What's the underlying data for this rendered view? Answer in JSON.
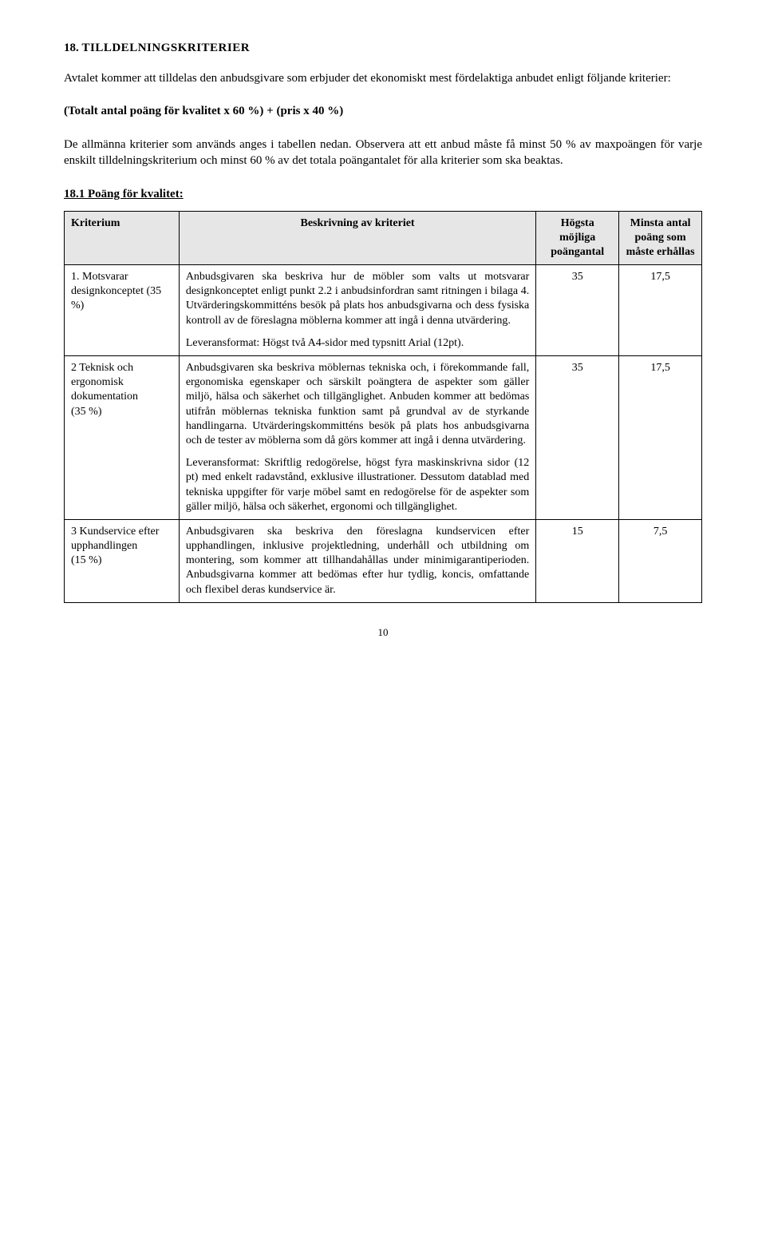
{
  "heading_prefix": "18. ",
  "heading_text": "TILLDELNINGSKRITERIER",
  "intro_para": "Avtalet kommer att tilldelas den anbudsgivare som erbjuder det ekonomiskt mest fördelaktiga anbudet enligt följande kriterier:",
  "formula": "(Totalt antal poäng för kvalitet x 60 %) + (pris x 40 %)",
  "general_para": "De allmänna kriterier som används anges i tabellen nedan. Observera att ett anbud måste få minst 50 % av maxpoängen för varje enskilt tilldelningskriterium och minst 60 % av det totala poängantalet för alla kriterier som ska beaktas.",
  "subheading": "18.1 Poäng för kvalitet:",
  "table": {
    "headers": {
      "criterion": "Kriterium",
      "description": "Beskrivning av kriteriet",
      "max_points": "Högsta möjliga poängantal",
      "min_points": "Minsta antal poäng som måste erhållas"
    },
    "rows": [
      {
        "criterion": "1. Motsvarar designkonceptet (35 %)",
        "desc_p1": "Anbudsgivaren ska beskriva hur de möbler som valts ut motsvarar designkonceptet enligt punkt 2.2 i anbudsinfordran samt ritningen i bilaga 4. Utvärderingskommitténs besök på plats hos anbudsgivarna och dess fysiska kontroll av de föreslagna möblerna kommer att ingå i denna utvärdering.",
        "desc_p2": "Leveransformat: Högst två A4-sidor med typsnitt Arial (12pt).",
        "max": "35",
        "min": "17,5"
      },
      {
        "criterion": "2 Teknisk och ergonomisk dokumentation\n (35 %)",
        "desc_p1": "Anbudsgivaren ska beskriva möblernas tekniska och, i förekommande fall, ergonomiska egenskaper och särskilt poängtera de aspekter som gäller miljö, hälsa och säkerhet och tillgänglighet. Anbuden kommer att bedömas utifrån möblernas tekniska funktion samt på grundval av de styrkande handlingarna. Utvärderingskommitténs besök på plats hos anbudsgivarna och de tester av möblerna som då görs kommer att ingå i denna utvärdering.",
        "desc_p2": "Leveransformat: Skriftlig redogörelse, högst fyra maskinskrivna sidor (12 pt) med enkelt radavstånd, exklusive illustrationer. Dessutom datablad med tekniska uppgifter för varje möbel samt en redogörelse för de aspekter som gäller miljö, hälsa och säkerhet, ergonomi och tillgänglighet.",
        "max": "35",
        "min": "17,5"
      },
      {
        "criterion": "3 Kundservice efter upphandlingen\n (15 %)",
        "desc_p1": "Anbudsgivaren ska beskriva den föreslagna kundservicen efter upphandlingen, inklusive projektledning, underhåll och utbildning om montering, som kommer att tillhandahållas under minimigarantiperioden. Anbudsgivarna kommer att bedömas efter hur tydlig, koncis, omfattande och flexibel deras kundservice är.",
        "desc_p2": "",
        "max": "15",
        "min": "7,5"
      }
    ]
  },
  "page_number": "10"
}
